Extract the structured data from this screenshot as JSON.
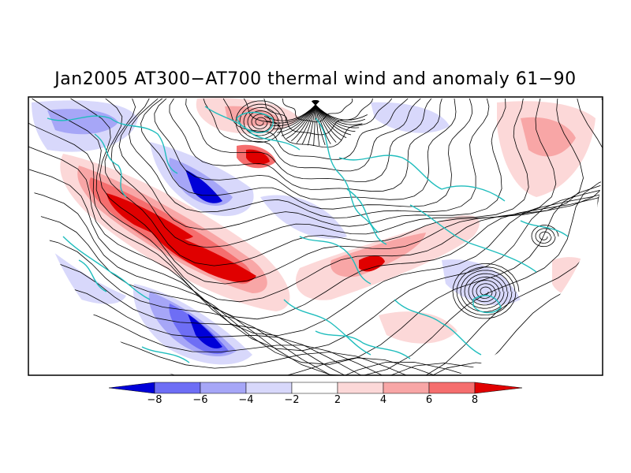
{
  "title": "Jan2005 AT300−AT700 thermal wind and anomaly 61−90",
  "colorbar": {
    "labels": [
      "−8",
      "−6",
      "−4",
      "−2",
      "2",
      "4",
      "6",
      "8"
    ],
    "colors": [
      "#0000d8",
      "#6e6ef5",
      "#a6a6f7",
      "#d8d8fb",
      "#ffffff",
      "#fcd8d8",
      "#f8a6a6",
      "#f56e6e",
      "#e00000"
    ]
  },
  "colors": {
    "coast": "#1fbdbd",
    "streamline": "#000000"
  }
}
